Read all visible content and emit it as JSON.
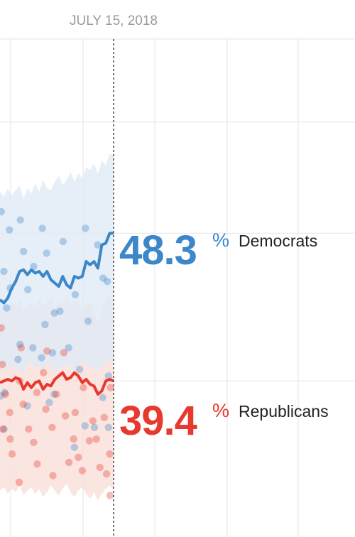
{
  "chart_data": {
    "type": "line",
    "date_marker": "JULY 15, 2018",
    "y_unit": "%",
    "ylim": [
      30,
      60
    ],
    "grid": true,
    "note": "",
    "series": [
      {
        "name": "Democrats",
        "color": "#3b87c9",
        "band_color": "#dde9f5",
        "latest_value": "48.3",
        "line": [
          44.3,
          44.1,
          44.4,
          45.0,
          45.4,
          46.0,
          46.1,
          45.8,
          46.1,
          45.9,
          46.0,
          45.7,
          46.0,
          45.5,
          45.3,
          45.1,
          45.7,
          45.2,
          45.0,
          45.7,
          45.6,
          45.7,
          46.6,
          46.4,
          46.6,
          46.2,
          47.6,
          47.7,
          48.3,
          48.3
        ],
        "band_upper": [
          50.8,
          50.5,
          51.0,
          50.6,
          50.9,
          51.2,
          50.4,
          51.0,
          50.7,
          51.3,
          50.8,
          51.5,
          51.0,
          50.9,
          51.4,
          51.8,
          51.2,
          51.5,
          52.0,
          51.4,
          51.9,
          51.6,
          52.3,
          52.1,
          52.5,
          51.9,
          52.7,
          52.4,
          53.1,
          53.0
        ],
        "band_lower": [
          40.3,
          40.1,
          40.0,
          40.4,
          40.2,
          40.0,
          39.8,
          40.3,
          40.5,
          40.1,
          40.4,
          40.0,
          40.6,
          40.2,
          39.9,
          40.3,
          40.1,
          40.5,
          40.2,
          40.0,
          40.3,
          40.6,
          40.4,
          40.1,
          40.3,
          40.0,
          40.2,
          40.5,
          40.7,
          40.4
        ],
        "polls": [
          {
            "d": 0.3,
            "v": 49.6
          },
          {
            "d": 1.0,
            "v": 46.0
          },
          {
            "d": 2.4,
            "v": 48.5
          },
          {
            "d": 2.6,
            "v": 45.0
          },
          {
            "d": 1.7,
            "v": 43.8
          },
          {
            "d": 5.2,
            "v": 49.1
          },
          {
            "d": 6.0,
            "v": 47.2
          },
          {
            "d": 7.1,
            "v": 44.9
          },
          {
            "d": 8.6,
            "v": 46.3
          },
          {
            "d": 10.8,
            "v": 48.6
          },
          {
            "d": 11.9,
            "v": 47.1
          },
          {
            "d": 11.5,
            "v": 42.8
          },
          {
            "d": 13.9,
            "v": 43.5
          },
          {
            "d": 15.3,
            "v": 43.6
          },
          {
            "d": 16.1,
            "v": 47.8
          },
          {
            "d": 17.5,
            "v": 41.4
          },
          {
            "d": 19.2,
            "v": 44.6
          },
          {
            "d": 21.8,
            "v": 48.6
          },
          {
            "d": 22.5,
            "v": 43.0
          },
          {
            "d": 24.9,
            "v": 47.6
          },
          {
            "d": 26.3,
            "v": 45.6
          },
          {
            "d": 27.4,
            "v": 45.4
          },
          {
            "d": 5.1,
            "v": 41.6
          },
          {
            "d": 8.4,
            "v": 41.4
          },
          {
            "d": 10.6,
            "v": 40.8
          },
          {
            "d": 12.6,
            "v": 38.1
          },
          {
            "d": 13.8,
            "v": 38.6
          },
          {
            "d": 20.3,
            "v": 40.1
          },
          {
            "d": 27.7,
            "v": 39.7
          },
          {
            "d": 0.2,
            "v": 38.5
          },
          {
            "d": 7.0,
            "v": 37.9
          },
          {
            "d": 26.2,
            "v": 38.4
          },
          {
            "d": 1.0,
            "v": 36.5
          },
          {
            "d": 21.7,
            "v": 36.7
          },
          {
            "d": 24.1,
            "v": 36.6
          },
          {
            "d": 27.7,
            "v": 36.6
          },
          {
            "d": 16.3,
            "v": 29.7
          },
          {
            "d": 13.4,
            "v": 41.1
          },
          {
            "d": 4.6,
            "v": 40.7
          },
          {
            "d": 1.2,
            "v": 38.7
          },
          {
            "d": 19.0,
            "v": 35.4
          }
        ]
      },
      {
        "name": "Republicans",
        "color": "#e8392f",
        "band_color": "#fadcd7",
        "latest_value": "39.4",
        "line": [
          39.3,
          39.4,
          39.5,
          39.4,
          39.6,
          39.5,
          38.9,
          39.3,
          39.0,
          39.3,
          39.4,
          38.9,
          39.2,
          39.1,
          39.5,
          39.7,
          39.9,
          39.5,
          39.6,
          39.9,
          39.7,
          39.3,
          39.5,
          39.2,
          39.1,
          38.6,
          38.8,
          39.4,
          39.5,
          39.4
        ],
        "band_upper": [
          43.8,
          44.0,
          43.6,
          44.1,
          43.9,
          44.3,
          43.7,
          44.0,
          44.2,
          43.8,
          44.4,
          43.9,
          44.1,
          44.5,
          43.8,
          44.2,
          44.0,
          44.6,
          43.9,
          44.3,
          44.1,
          43.7,
          44.0,
          44.2,
          43.6,
          42.9,
          43.8,
          44.4,
          44.6,
          44.3
        ],
        "band_lower": [
          32.8,
          33.0,
          32.6,
          32.9,
          32.7,
          33.1,
          32.5,
          32.8,
          33.0,
          32.6,
          32.9,
          32.4,
          32.7,
          33.1,
          32.8,
          32.5,
          32.9,
          33.2,
          32.7,
          32.4,
          32.8,
          33.0,
          32.6,
          32.3,
          32.7,
          32.2,
          32.6,
          32.9,
          33.1,
          32.8
        ],
        "polls": [
          {
            "d": 0.3,
            "v": 42.6
          },
          {
            "d": 0.6,
            "v": 40.4
          },
          {
            "d": 1.4,
            "v": 38.6
          },
          {
            "d": 2.5,
            "v": 37.5
          },
          {
            "d": 0.8,
            "v": 36.5
          },
          {
            "d": 3.1,
            "v": 35.0
          },
          {
            "d": 5.4,
            "v": 41.4
          },
          {
            "d": 5.0,
            "v": 39.4
          },
          {
            "d": 5.9,
            "v": 38.0
          },
          {
            "d": 7.3,
            "v": 36.5
          },
          {
            "d": 8.6,
            "v": 35.7
          },
          {
            "d": 9.4,
            "v": 38.7
          },
          {
            "d": 11.1,
            "v": 39.9
          },
          {
            "d": 12.0,
            "v": 41.2
          },
          {
            "d": 11.7,
            "v": 37.7
          },
          {
            "d": 13.3,
            "v": 36.6
          },
          {
            "d": 14.4,
            "v": 38.6
          },
          {
            "d": 16.3,
            "v": 41.1
          },
          {
            "d": 16.7,
            "v": 37.3
          },
          {
            "d": 17.6,
            "v": 34.5
          },
          {
            "d": 18.8,
            "v": 35.9
          },
          {
            "d": 20.0,
            "v": 34.8
          },
          {
            "d": 21.3,
            "v": 39.0
          },
          {
            "d": 22.8,
            "v": 35.8
          },
          {
            "d": 23.7,
            "v": 37.0
          },
          {
            "d": 24.6,
            "v": 35.9
          },
          {
            "d": 25.5,
            "v": 34.2
          },
          {
            "d": 26.6,
            "v": 37.2
          },
          {
            "d": 27.2,
            "v": 33.8
          },
          {
            "d": 28.1,
            "v": 32.5
          },
          {
            "d": 28.0,
            "v": 35.0
          },
          {
            "d": 28.2,
            "v": 39.0
          },
          {
            "d": 4.9,
            "v": 33.3
          },
          {
            "d": 9.5,
            "v": 34.4
          },
          {
            "d": 13.5,
            "v": 33.7
          },
          {
            "d": 21.0,
            "v": 34.0
          },
          {
            "d": 2.6,
            "v": 35.9
          },
          {
            "d": 19.2,
            "v": 37.5
          }
        ]
      }
    ]
  }
}
